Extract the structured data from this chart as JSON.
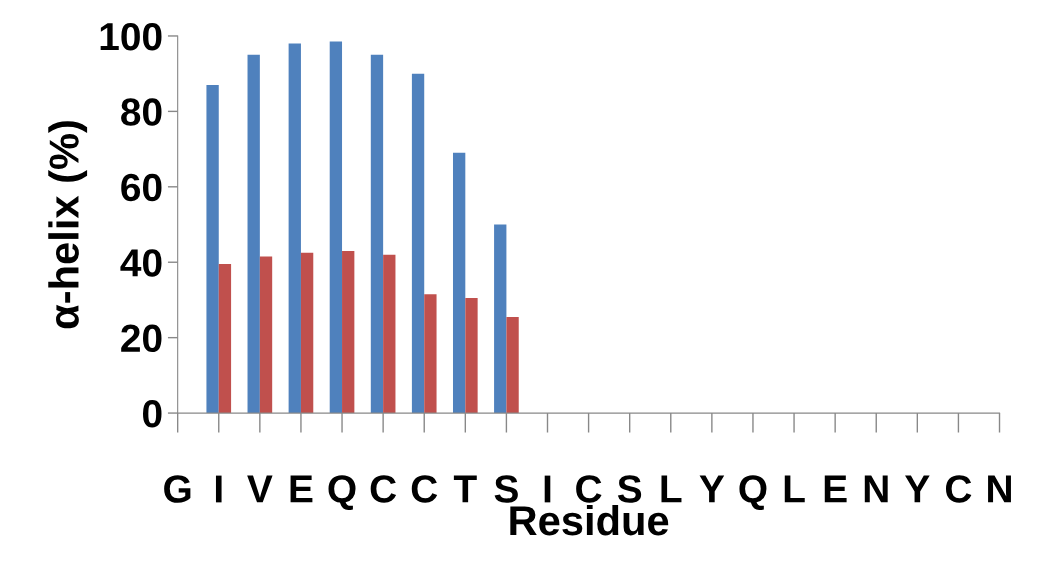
{
  "chart_data": {
    "type": "bar",
    "xlabel": "Residue",
    "ylabel": "α-helix (%)",
    "categories": [
      "G",
      "I",
      "V",
      "E",
      "Q",
      "C",
      "C",
      "T",
      "S",
      "I",
      "C",
      "S",
      "L",
      "Y",
      "Q",
      "L",
      "E",
      "N",
      "Y",
      "C",
      "N"
    ],
    "series": [
      {
        "color": "#4f81bd",
        "values": [
          null,
          87,
          95,
          98,
          98.5,
          95,
          90,
          69,
          50,
          null,
          null,
          null,
          null,
          null,
          null,
          null,
          null,
          null,
          null,
          null,
          null
        ]
      },
      {
        "color": "#c0504d",
        "values": [
          null,
          39.5,
          41.5,
          42.5,
          43,
          42,
          31.5,
          30.5,
          25.5,
          null,
          null,
          null,
          null,
          null,
          null,
          null,
          null,
          null,
          null,
          null,
          null
        ]
      }
    ],
    "ylim": [
      0,
      100
    ],
    "yticks": [
      0,
      20,
      40,
      60,
      80,
      100
    ],
    "grid": false,
    "legend": false
  }
}
